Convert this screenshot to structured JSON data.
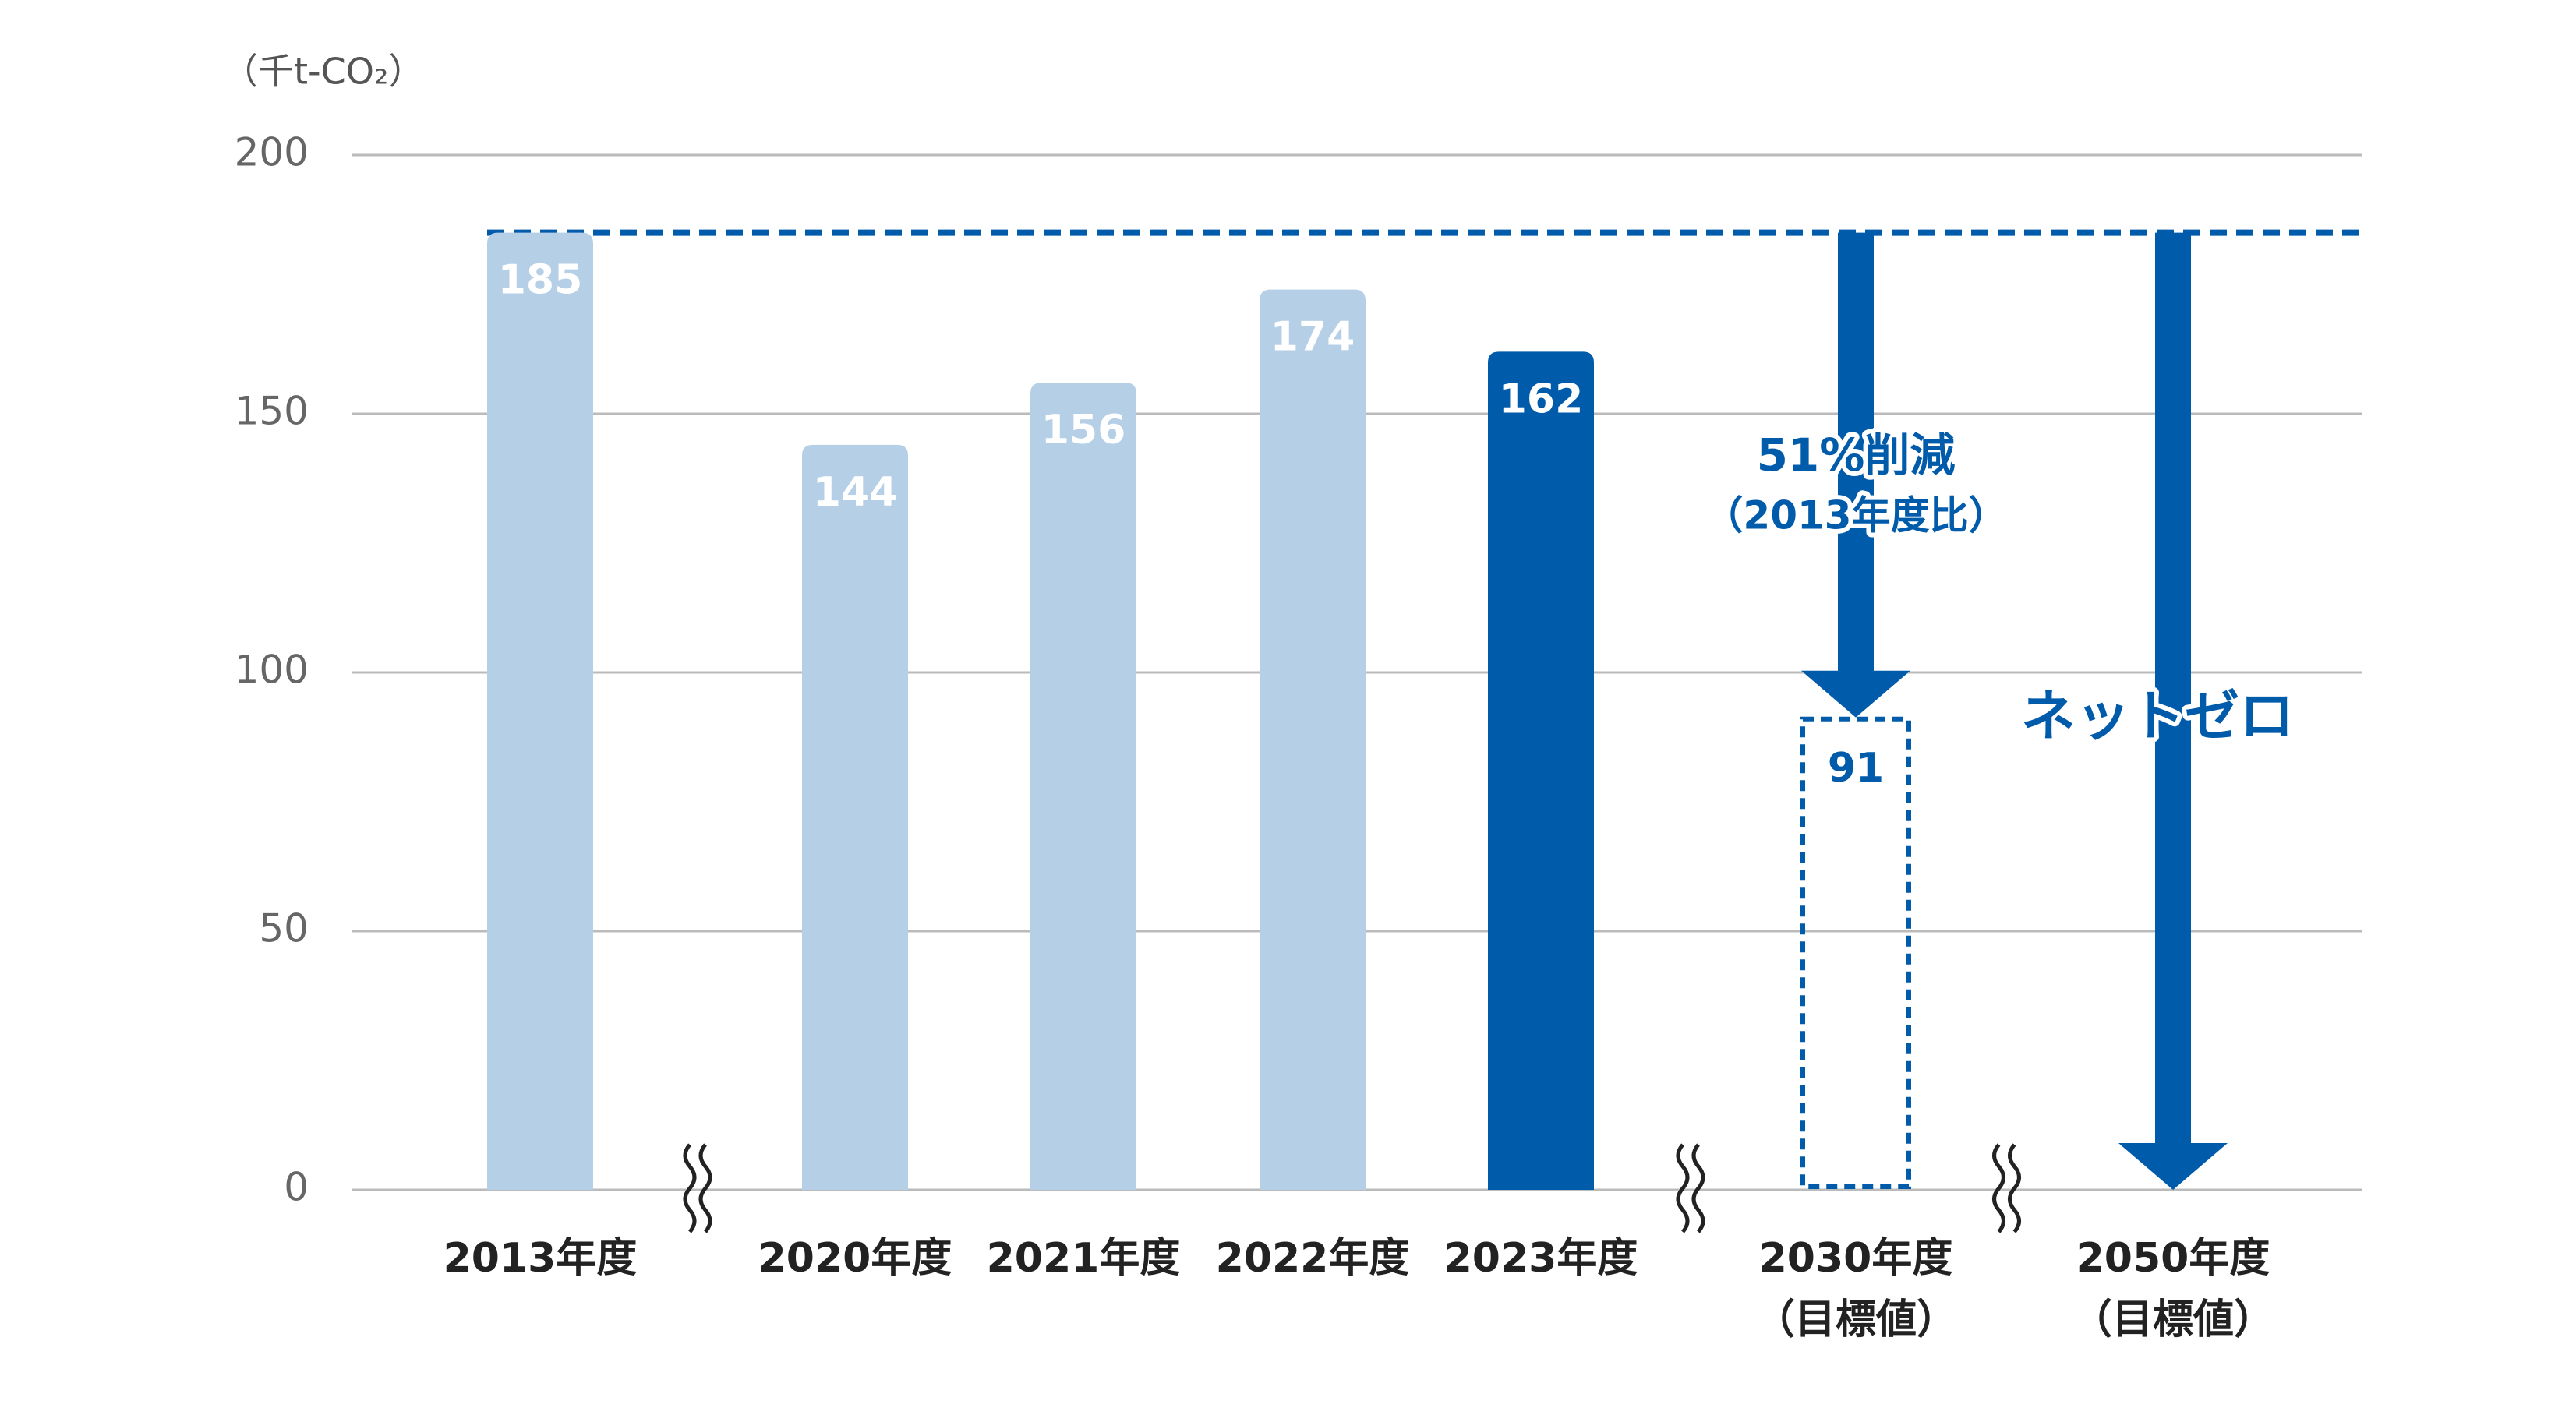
{
  "chart_data": {
    "type": "bar",
    "unit_label": "（千t-CO₂）",
    "categories": [
      "2013年度",
      "2020年度",
      "2021年度",
      "2022年度",
      "2023年度",
      "2030年度",
      "2050年度"
    ],
    "category_notes": [
      null,
      null,
      null,
      null,
      null,
      "（目標値）",
      "（目標値）"
    ],
    "values": [
      185,
      144,
      156,
      174,
      162,
      91,
      null
    ],
    "colors": [
      "#b5cfe6",
      "#b5cfe6",
      "#b5cfe6",
      "#b5cfe6",
      "#005bab",
      "#005bab",
      "#005bab"
    ],
    "bar_styles": [
      "solid",
      "solid",
      "solid",
      "solid",
      "solid",
      "dashed",
      "arrow"
    ],
    "axis_breaks_after": [
      0,
      4,
      5
    ],
    "ylim": [
      0,
      200
    ],
    "yticks": [
      0,
      50,
      100,
      150,
      200
    ],
    "grid": true,
    "annotations": [
      "51%削減",
      "（2013年度比）",
      "ネットゼロ"
    ]
  }
}
